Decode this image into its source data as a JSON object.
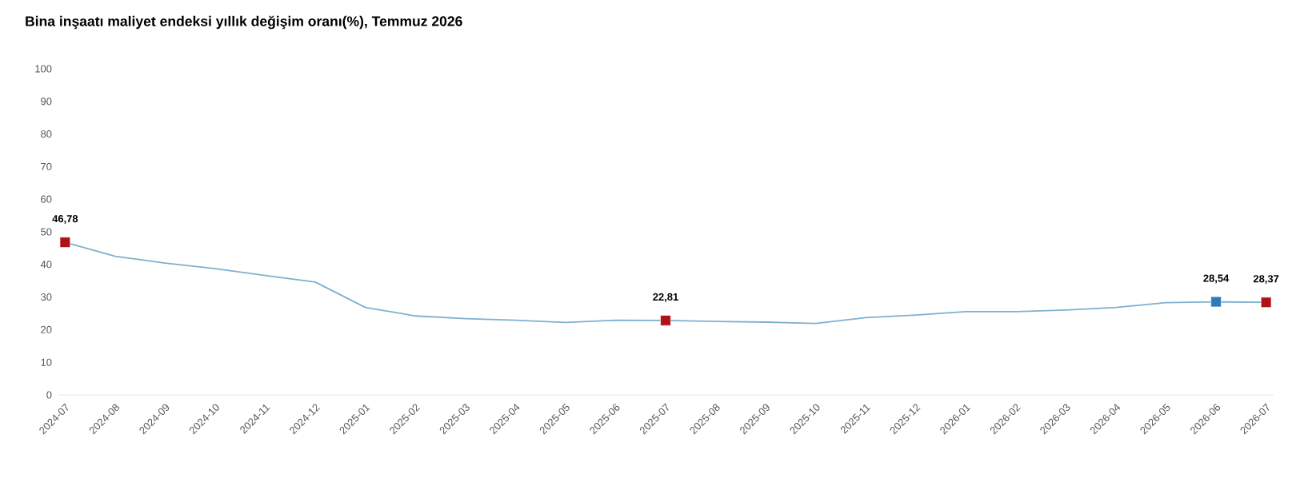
{
  "chart_data": {
    "type": "line",
    "title": "Bina inşaatı maliyet endeksi yıllık değişim oranı(%), Temmuz 2026",
    "categories": [
      "2024-07",
      "2024-08",
      "2024-09",
      "2024-10",
      "2024-11",
      "2024-12",
      "2025-01",
      "2025-02",
      "2025-03",
      "2025-04",
      "2025-05",
      "2025-06",
      "2025-07",
      "2025-08",
      "2025-09",
      "2025-10",
      "2025-11",
      "2025-12",
      "2026-01",
      "2026-02",
      "2026-03",
      "2026-04",
      "2026-05",
      "2026-06",
      "2026-07"
    ],
    "ylim": [
      0,
      100
    ],
    "yticks": [
      0,
      10,
      20,
      30,
      40,
      50,
      60,
      70,
      80,
      90,
      100
    ],
    "series": [
      {
        "color": "#7fb0cf",
        "marker": "none",
        "values": [
          46.8,
          42.5,
          40.4,
          38.7,
          36.6,
          34.6,
          26.8,
          24.2,
          23.4,
          22.9,
          22.2,
          22.9,
          22.8,
          22.5,
          22.3,
          21.9,
          23.7,
          24.5,
          25.5,
          25.5,
          26.0,
          26.8,
          28.3,
          28.5,
          28.4
        ]
      },
      {
        "type": "scatter",
        "marker": "square",
        "values": [
          46.78,
          null,
          null,
          null,
          null,
          null,
          null,
          null,
          null,
          null,
          null,
          null,
          22.81,
          null,
          null,
          null,
          null,
          null,
          null,
          null,
          null,
          null,
          null,
          28.54,
          28.37
        ],
        "colors": [
          "#b01116",
          null,
          null,
          null,
          null,
          null,
          null,
          null,
          null,
          null,
          null,
          null,
          "#b01116",
          null,
          null,
          null,
          null,
          null,
          null,
          null,
          null,
          null,
          null,
          "#2e7ab8",
          "#b01116"
        ],
        "value_labels": [
          "46,78",
          null,
          null,
          null,
          null,
          null,
          null,
          null,
          null,
          null,
          null,
          null,
          "22,81",
          null,
          null,
          null,
          null,
          null,
          null,
          null,
          null,
          null,
          null,
          "28,54",
          "28,37"
        ]
      }
    ]
  }
}
